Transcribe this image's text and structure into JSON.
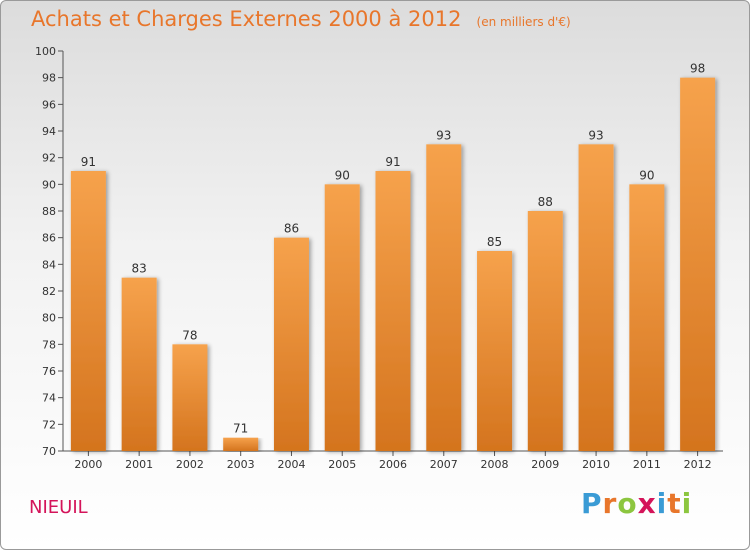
{
  "title": "Achats et Charges Externes 2000 à 2012",
  "subtitle": "(en milliers d'€)",
  "location": "NIEUIL",
  "brand": {
    "text": "Proxiti",
    "letters": [
      "P",
      "r",
      "o",
      "x",
      "i",
      "t",
      "i"
    ],
    "letter_colors": [
      "#3a9bd5",
      "#e8762b",
      "#8cc63f",
      "#d4145a",
      "#3a9bd5",
      "#e8762b",
      "#8cc63f"
    ]
  },
  "colors": {
    "bar_light": "#f6a24c",
    "bar_dark": "#d4741e",
    "title": "#e8762b",
    "axis": "#555555",
    "label": "#333333"
  },
  "chart_data": {
    "type": "bar",
    "title": "Achats et Charges Externes 2000 à 2012",
    "subtitle": "(en milliers d'€)",
    "categories": [
      "2000",
      "2001",
      "2002",
      "2003",
      "2004",
      "2005",
      "2006",
      "2007",
      "2008",
      "2009",
      "2010",
      "2011",
      "2012"
    ],
    "values": [
      91,
      83,
      78,
      71,
      86,
      90,
      91,
      93,
      85,
      88,
      93,
      90,
      98
    ],
    "ylim": [
      70,
      100
    ],
    "yticks": [
      70,
      72,
      74,
      76,
      78,
      80,
      82,
      84,
      86,
      88,
      90,
      92,
      94,
      96,
      98,
      100
    ],
    "xlabel": "",
    "ylabel": "",
    "grid": false,
    "data_labels": true
  }
}
